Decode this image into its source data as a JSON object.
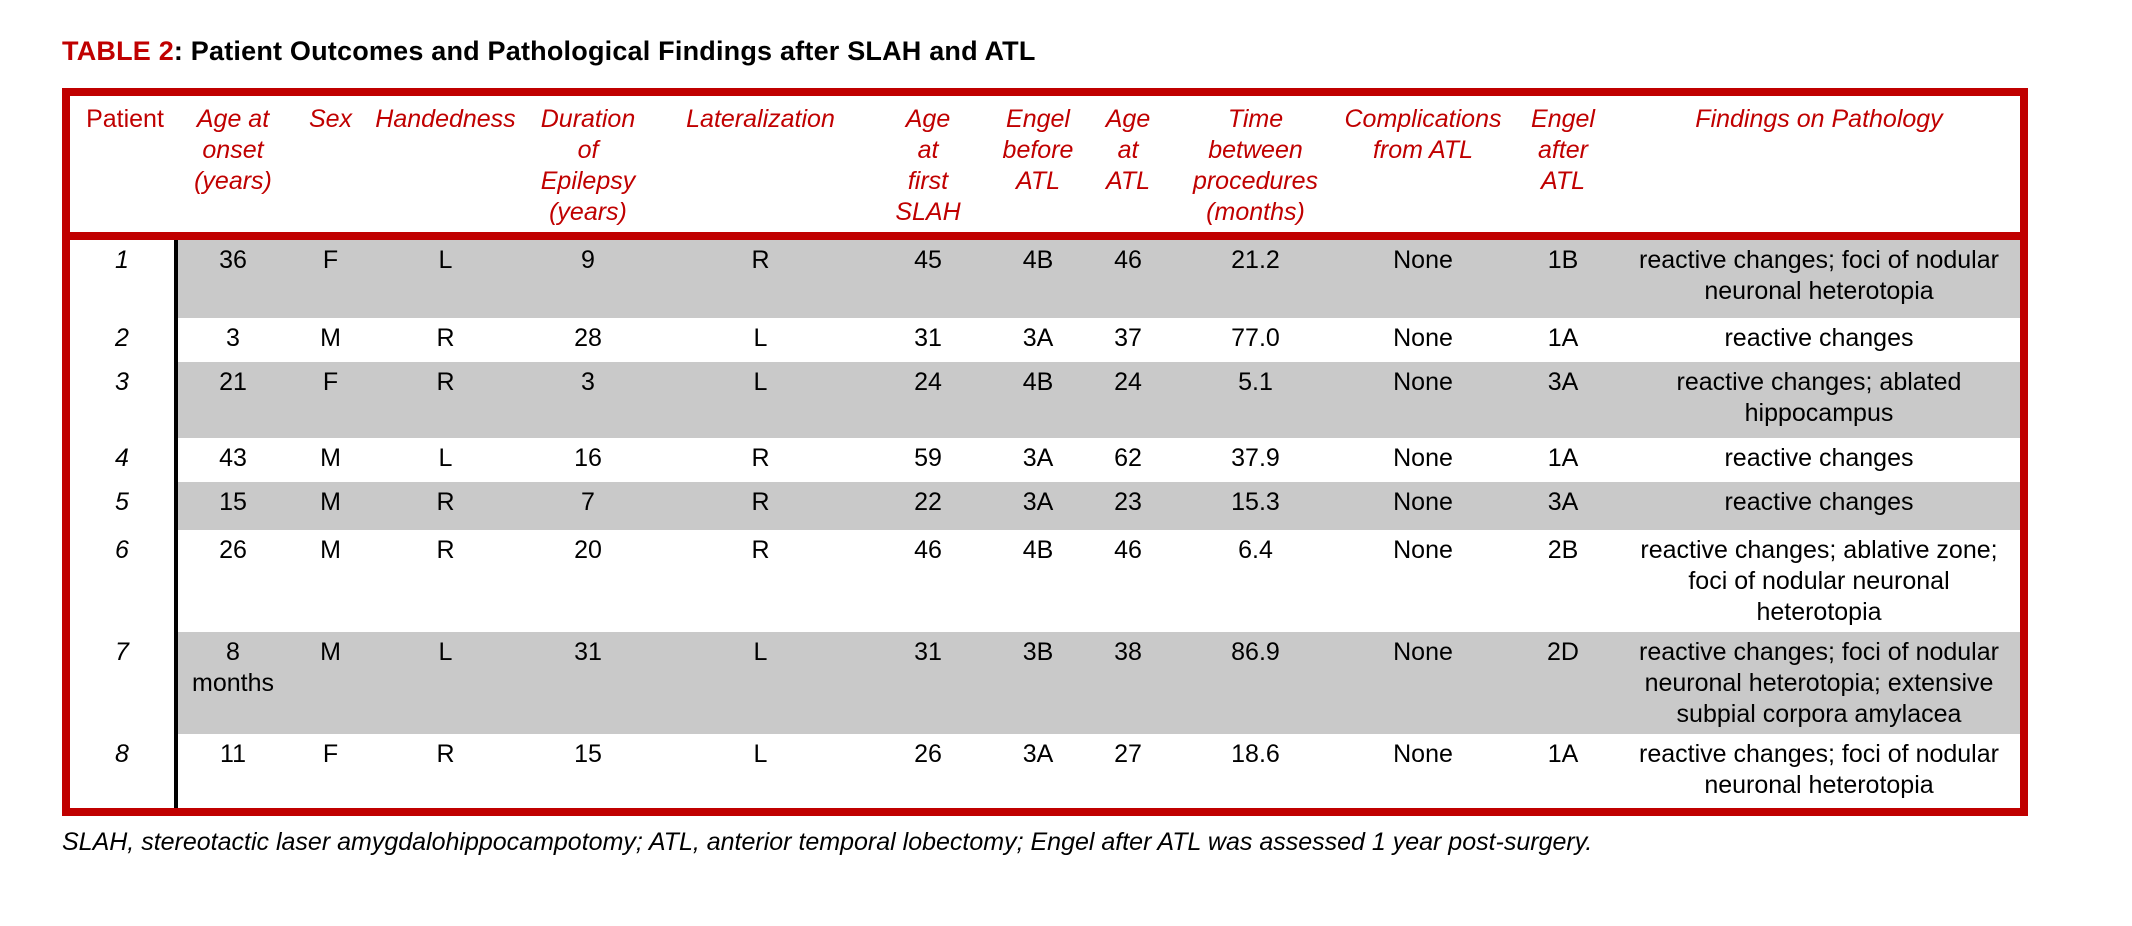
{
  "colors": {
    "accent": "#c00000",
    "stripe": "#c9c9c9",
    "text": "#000000"
  },
  "title": {
    "label": "TABLE 2",
    "rest": ": Patient Outcomes and Pathological Findings after SLAH and ATL"
  },
  "table": {
    "columns": [
      {
        "key": "patient",
        "label": "Patient"
      },
      {
        "key": "age-at-onset",
        "label": "Age at\nonset\n(years)"
      },
      {
        "key": "sex",
        "label": "Sex"
      },
      {
        "key": "handedness",
        "label": "Handedness"
      },
      {
        "key": "duration-of-epilepsy",
        "label": "Duration\nof\nEpilepsy\n(years)"
      },
      {
        "key": "lateralization",
        "label": "Lateralization"
      },
      {
        "key": "age-at-first-slah",
        "label": "Age\nat\nfirst\nSLAH"
      },
      {
        "key": "engel-before-atl",
        "label": "Engel\nbefore\nATL"
      },
      {
        "key": "age-at-atl",
        "label": "Age\nat\nATL"
      },
      {
        "key": "time-between-procedures",
        "label": "Time\nbetween\nprocedures\n(months)"
      },
      {
        "key": "complications-from-atl",
        "label": "Complications\nfrom ATL"
      },
      {
        "key": "engel-after-atl",
        "label": "Engel\nafter\nATL"
      },
      {
        "key": "findings-on-pathology",
        "label": "Findings on Pathology"
      }
    ],
    "rows": [
      {
        "cells": [
          "1",
          "36",
          "F",
          "L",
          "9",
          "R",
          "45",
          "4B",
          "46",
          "21.2",
          "None",
          "1B",
          "reactive changes; foci of nodular neuronal heterotopia"
        ]
      },
      {
        "cells": [
          "2",
          "3",
          "M",
          "R",
          "28",
          "L",
          "31",
          "3A",
          "37",
          "77.0",
          "None",
          "1A",
          "reactive changes"
        ]
      },
      {
        "cells": [
          "3",
          "21",
          "F",
          "R",
          "3",
          "L",
          "24",
          "4B",
          "24",
          "5.1",
          "None",
          "3A",
          "reactive changes; ablated hippocampus"
        ]
      },
      {
        "cells": [
          "4",
          "43",
          "M",
          "L",
          "16",
          "R",
          "59",
          "3A",
          "62",
          "37.9",
          "None",
          "1A",
          "reactive changes"
        ]
      },
      {
        "cells": [
          "5",
          "15",
          "M",
          "R",
          "7",
          "R",
          "22",
          "3A",
          "23",
          "15.3",
          "None",
          "3A",
          "reactive changes"
        ]
      },
      {
        "cells": [
          "6",
          "26",
          "M",
          "R",
          "20",
          "R",
          "46",
          "4B",
          "46",
          "6.4",
          "None",
          "2B",
          "reactive changes; ablative zone; foci of nodular neuronal heterotopia"
        ]
      },
      {
        "cells": [
          "7",
          "8\nmonths",
          "M",
          "L",
          "31",
          "L",
          "31",
          "3B",
          "38",
          "86.9",
          "None",
          "2D",
          "reactive changes; foci of nodular neuronal heterotopia; extensive subpial corpora amylacea"
        ]
      },
      {
        "cells": [
          "8",
          "11",
          "F",
          "R",
          "15",
          "L",
          "26",
          "3A",
          "27",
          "18.6",
          "None",
          "1A",
          "reactive changes; foci of nodular neuronal heterotopia"
        ]
      }
    ]
  },
  "footnote": "SLAH, stereotactic laser amygdalohippocampotomy; ATL, anterior temporal lobectomy; Engel after ATL was assessed 1 year post-surgery."
}
